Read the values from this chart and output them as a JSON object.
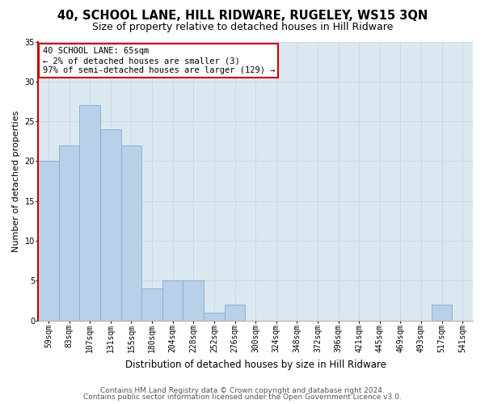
{
  "title1": "40, SCHOOL LANE, HILL RIDWARE, RUGELEY, WS15 3QN",
  "title2": "Size of property relative to detached houses in Hill Ridware",
  "xlabel": "Distribution of detached houses by size in Hill Ridware",
  "ylabel": "Number of detached properties",
  "categories": [
    "59sqm",
    "83sqm",
    "107sqm",
    "131sqm",
    "155sqm",
    "180sqm",
    "204sqm",
    "228sqm",
    "252sqm",
    "276sqm",
    "300sqm",
    "324sqm",
    "348sqm",
    "372sqm",
    "396sqm",
    "421sqm",
    "445sqm",
    "469sqm",
    "493sqm",
    "517sqm",
    "541sqm"
  ],
  "values": [
    20,
    22,
    27,
    24,
    22,
    4,
    5,
    5,
    1,
    2,
    0,
    0,
    0,
    0,
    0,
    0,
    0,
    0,
    0,
    2,
    0
  ],
  "bar_color": "#b8d0e8",
  "bar_edge_color": "#7aafd4",
  "annotation_text": "40 SCHOOL LANE: 65sqm\n← 2% of detached houses are smaller (3)\n97% of semi-detached houses are larger (129) →",
  "annotation_box_color": "#ffffff",
  "annotation_box_edge": "#cc0000",
  "ylim": [
    0,
    35
  ],
  "yticks": [
    0,
    5,
    10,
    15,
    20,
    25,
    30,
    35
  ],
  "grid_color": "#c8d8e8",
  "plot_bg_color": "#dce8f0",
  "footer1": "Contains HM Land Registry data © Crown copyright and database right 2024.",
  "footer2": "Contains public sector information licensed under the Open Government Licence v3.0.",
  "title1_fontsize": 10.5,
  "title2_fontsize": 9,
  "xlabel_fontsize": 8.5,
  "ylabel_fontsize": 8,
  "tick_fontsize": 7,
  "footer_fontsize": 6.5,
  "annotation_fontsize": 7.5
}
